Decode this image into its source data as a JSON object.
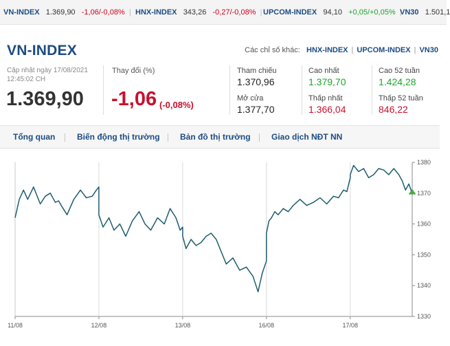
{
  "ticker": [
    {
      "name": "VN-INDEX",
      "value": "1.369,90",
      "change": "-1,06/-0,08%",
      "dir": "neg"
    },
    {
      "name": "HNX-INDEX",
      "value": "343,26",
      "change": "-0,27/-0,08%",
      "dir": "neg"
    },
    {
      "name": "UPCOM-INDEX",
      "value": "94,10",
      "change": "+0,05/+0,05%",
      "dir": "pos"
    },
    {
      "name": "VN30",
      "value": "1.501,1",
      "change": "",
      "dir": ""
    }
  ],
  "header": {
    "title": "VN-INDEX",
    "others_label": "Các chỉ số khác:",
    "others_links": [
      "HNX-INDEX",
      "UPCOM-INDEX",
      "VN30"
    ],
    "updated_line1": "Cập nhật ngày 17/08/2021",
    "updated_line2": "12:45:02 CH",
    "price": "1.369,90",
    "change_label": "Thay đổi (%)",
    "change_value": "-1,06",
    "change_pct": "(-0,08%)"
  },
  "stats": {
    "ref_label": "Tham chiếu",
    "ref_value": "1.370,96",
    "open_label": "Mở cửa",
    "open_value": "1.377,70",
    "high_label": "Cao nhất",
    "high_value": "1.379,70",
    "low_label": "Thấp nhất",
    "low_value": "1.366,04",
    "high52_label": "Cao 52 tuần",
    "high52_value": "1.424,28",
    "low52_label": "Thấp 52 tuần",
    "low52_value": "846,22"
  },
  "tabs": [
    "Tổng quan",
    "Biến động thị trường",
    "Bản đồ thị trường",
    "Giao dịch NĐT NN"
  ],
  "colors": {
    "line": "#1d5c6e",
    "marker": "#3db53d",
    "down": "#c8102e",
    "up": "#1aa62a",
    "brand": "#1c4b83"
  },
  "chart_data": {
    "type": "line",
    "xlabels": [
      "11/08",
      "12/08",
      "13/08",
      "16/08",
      "17/08"
    ],
    "y_ticks": [
      1330,
      1340,
      1350,
      1360,
      1370,
      1380
    ],
    "ylim": [
      1330,
      1380
    ],
    "grid": "vertical day separators",
    "series": [
      {
        "x": [
          0.0,
          0.05,
          0.1,
          0.15,
          0.22,
          0.3,
          0.36,
          0.42,
          0.48,
          0.52,
          0.55,
          0.62,
          0.7,
          0.78,
          0.85,
          0.92,
          0.97,
          1.0,
          1.0,
          1.05,
          1.12,
          1.18,
          1.25,
          1.32,
          1.4,
          1.48,
          1.55,
          1.62,
          1.7,
          1.78,
          1.85,
          1.92,
          1.97,
          2.0,
          2.0,
          2.04,
          2.1,
          2.16,
          2.22,
          2.28,
          2.34,
          2.4,
          2.46,
          2.52,
          2.6,
          2.68,
          2.76,
          2.84,
          2.9,
          2.95,
          3.0,
          3.0,
          3.03,
          3.06,
          3.1,
          3.14,
          3.2,
          3.26,
          3.32,
          3.4,
          3.48,
          3.56,
          3.64,
          3.72,
          3.8,
          3.86,
          3.92,
          3.96,
          4.0,
          4.0,
          4.04,
          4.1,
          4.16,
          4.22,
          4.28,
          4.34,
          4.4,
          4.46,
          4.52,
          4.58,
          4.62,
          4.66,
          4.7,
          4.74
        ],
        "y": [
          1362.0,
          1368.0,
          1371.0,
          1368.0,
          1372.0,
          1366.5,
          1369.0,
          1370.0,
          1367.0,
          1367.5,
          1366.0,
          1363.0,
          1368.0,
          1371.0,
          1368.5,
          1369.0,
          1371.0,
          1372.0,
          1363.0,
          1359.0,
          1362.0,
          1358.0,
          1360.0,
          1356.0,
          1361.0,
          1364.0,
          1360.0,
          1358.0,
          1362.0,
          1360.0,
          1365.0,
          1362.0,
          1358.0,
          1359.0,
          1356.0,
          1352.0,
          1355.0,
          1353.0,
          1354.0,
          1356.0,
          1357.0,
          1355.0,
          1351.0,
          1347.0,
          1349.0,
          1345.0,
          1346.0,
          1343.0,
          1338.0,
          1344.0,
          1348.0,
          1357.0,
          1361.0,
          1362.0,
          1364.0,
          1363.0,
          1365.0,
          1364.0,
          1366.0,
          1368.0,
          1366.0,
          1367.0,
          1368.5,
          1366.5,
          1369.0,
          1368.5,
          1371.0,
          1370.5,
          1375.0,
          1376.0,
          1379.0,
          1377.0,
          1378.0,
          1375.0,
          1376.0,
          1378.0,
          1377.5,
          1376.0,
          1378.0,
          1376.0,
          1374.0,
          1371.0,
          1373.0,
          1369.9
        ]
      }
    ]
  }
}
